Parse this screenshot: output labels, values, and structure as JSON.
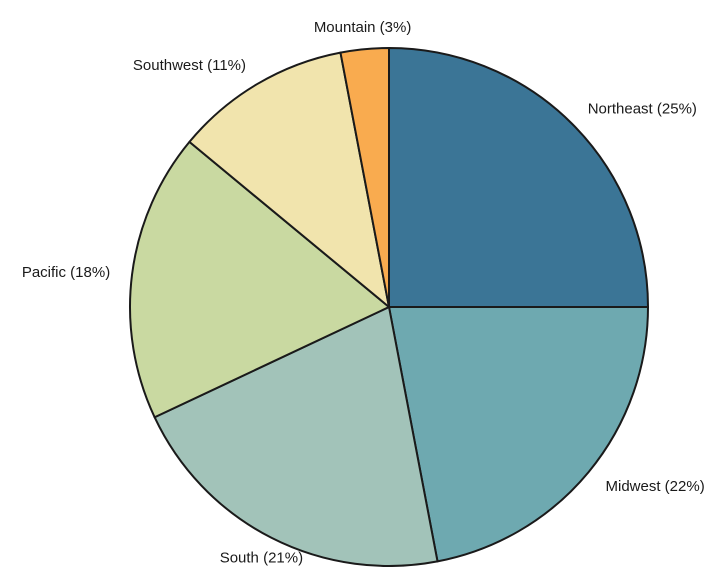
{
  "chart_data": {
    "type": "pie",
    "title": "",
    "start_angle_deg": 90,
    "direction": "clockwise",
    "slices": [
      {
        "name": "Northeast",
        "value": 25,
        "label": "Northeast (25%)",
        "color": "#3b7596"
      },
      {
        "name": "Midwest",
        "value": 22,
        "label": "Midwest (22%)",
        "color": "#6ea9b0"
      },
      {
        "name": "South",
        "value": 21,
        "label": "South (21%)",
        "color": "#a2c3b9"
      },
      {
        "name": "Pacific",
        "value": 18,
        "label": "Pacific (18%)",
        "color": "#c9d9a1"
      },
      {
        "name": "Southwest",
        "value": 11,
        "label": "Southwest (11%)",
        "color": "#f1e4ad"
      },
      {
        "name": "Mountain",
        "value": 3,
        "label": "Mountain (3%)",
        "color": "#f9ab4f"
      }
    ],
    "grid": false,
    "legend": "none"
  }
}
